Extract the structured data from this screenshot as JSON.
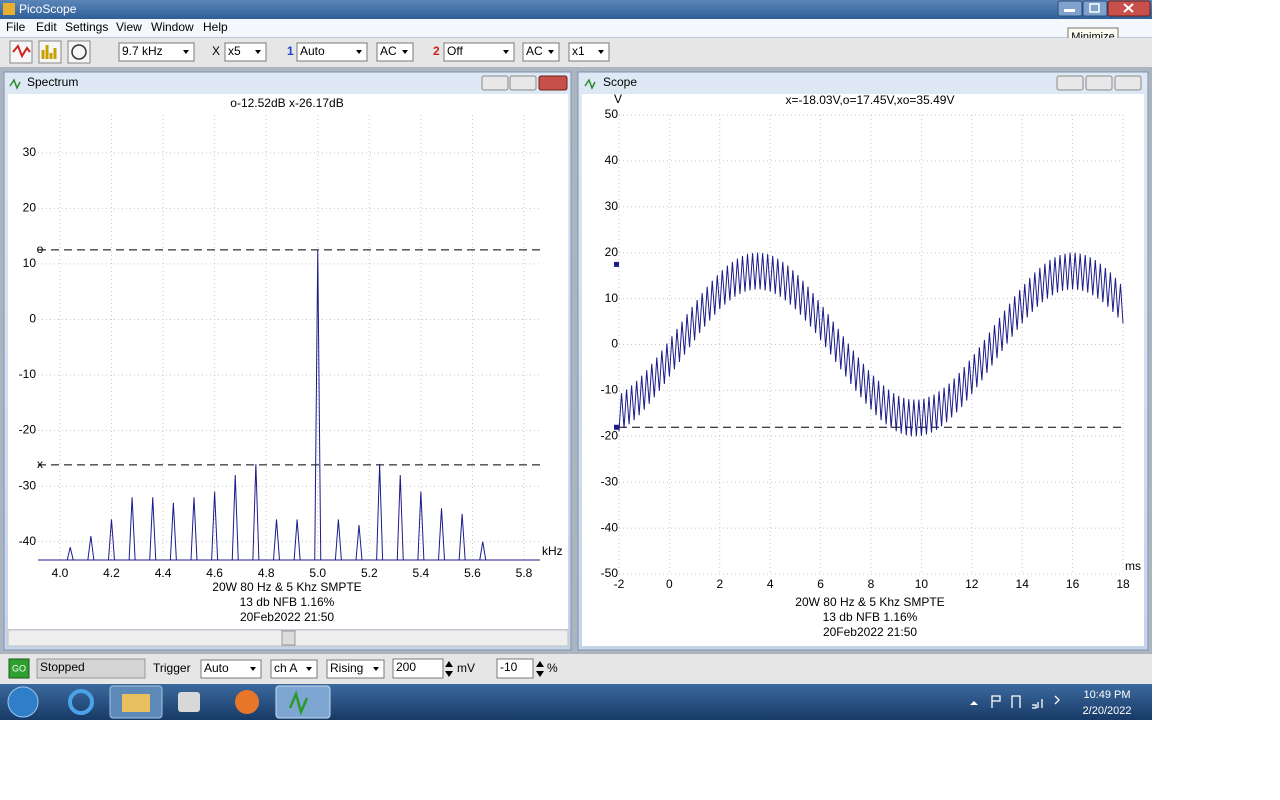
{
  "window": {
    "title": "PicoScope"
  },
  "tooltip": "Minimize",
  "menu": [
    "File",
    "Edit",
    "Settings",
    "View",
    "Window",
    "Help"
  ],
  "toolbar": {
    "timebase": "9.7 kHz",
    "x_label": "X",
    "zoom": "x5",
    "channel_1": "1",
    "ch1_range": "Auto",
    "ch1_coupling": "AC",
    "channel_2": "2",
    "ch2_range": "Off",
    "ch2_coupling": "AC",
    "ch2_multiplier": "x1"
  },
  "spectrum": {
    "title": "Spectrum",
    "readout": "o-12.52dB  x-26.17dB",
    "x_unit": "kHz",
    "color": "#1c1c8a",
    "grid": true,
    "xlim": [
      3.915,
      5.862
    ],
    "xticks": [
      {
        "value": 4,
        "label": "4.0"
      },
      4.2,
      4.4,
      4.6,
      4.8,
      {
        "value": 5,
        "label": "5.0"
      },
      5.2,
      5.4,
      5.6,
      5.8
    ],
    "ylim": [
      -43.3,
      36.8
    ],
    "yticks": [
      -40,
      -30,
      -20,
      -10,
      0,
      10,
      20,
      30
    ],
    "markers": [
      {
        "label": "o",
        "value": 12.52
      },
      {
        "label": "x",
        "value": -26.17
      }
    ],
    "peaks": {
      "x": [
        4.04,
        4.12,
        4.2,
        4.28,
        4.36,
        4.44,
        4.52,
        4.6,
        4.68,
        4.76,
        4.84,
        4.92,
        5.0,
        5.08,
        5.16,
        5.24,
        5.32,
        5.4,
        5.48,
        5.56,
        5.64
      ],
      "values": [
        -41,
        -39,
        -36,
        -32,
        -32,
        -33,
        -32,
        -31,
        -28,
        -26,
        -36,
        -36,
        12.52,
        -36,
        -37,
        -26,
        -28,
        -31,
        -34,
        -35,
        -40
      ]
    },
    "caption": [
      "20W 80 Hz & 5 Khz SMPTE",
      "13 db NFB 1.16%",
      "20Feb2022  21:50"
    ]
  },
  "scope": {
    "title": "Scope",
    "readout": "x=-18.03V,o=17.45V,xo=35.49V",
    "y_unit": "V",
    "x_unit": "ms",
    "color": "#1c1c8a",
    "grid": true,
    "xlim": [
      -2,
      18
    ],
    "xticks": [
      -2,
      0,
      2,
      4,
      6,
      8,
      10,
      12,
      14,
      16,
      18
    ],
    "ylim": [
      -50,
      50
    ],
    "yticks": [
      -50,
      -40,
      -30,
      -20,
      -10,
      0,
      10,
      20,
      30,
      40,
      50
    ],
    "markers": [
      {
        "value": 17.45,
        "line": false
      },
      {
        "value": -18.03,
        "line": true
      }
    ],
    "trace": {
      "x": [
        -2,
        -1.9,
        -1.8,
        -1.7,
        -1.6,
        -1.5,
        -1.4,
        -1.3,
        -1.2,
        -1.1,
        -1,
        -0.9,
        -0.8,
        -0.7,
        -0.6,
        -0.5,
        -0.4,
        -0.3,
        -0.2,
        -0.1,
        0,
        0.1,
        0.2,
        0.3,
        0.4,
        0.5,
        0.6,
        0.7,
        0.8,
        0.9,
        1,
        1.1,
        1.2,
        1.3,
        1.4,
        1.5,
        1.6,
        1.7,
        1.8,
        1.9,
        2,
        2.1,
        2.2,
        2.3,
        2.4,
        2.5,
        2.6,
        2.7,
        2.8,
        2.9,
        3,
        3.1,
        3.2,
        3.3,
        3.4,
        3.5,
        3.6,
        3.7,
        3.8,
        3.9,
        4,
        4.1,
        4.2,
        4.3,
        4.4,
        4.5,
        4.6,
        4.7,
        4.8,
        4.9,
        5,
        5.1,
        5.2,
        5.3,
        5.4,
        5.5,
        5.6,
        5.7,
        5.8,
        5.9,
        6,
        6.1,
        6.2,
        6.3,
        6.4,
        6.5,
        6.6,
        6.7,
        6.8,
        6.9,
        7,
        7.1,
        7.2,
        7.3,
        7.4,
        7.5,
        7.6,
        7.7,
        7.8,
        7.9,
        8,
        8.1,
        8.2,
        8.3,
        8.4,
        8.5,
        8.6,
        8.7,
        8.8,
        8.9,
        9,
        9.1,
        9.2,
        9.3,
        9.4,
        9.5,
        9.6,
        9.7,
        9.8,
        9.9,
        10,
        10.1,
        10.2,
        10.3,
        10.4,
        10.5,
        10.6,
        10.7,
        10.8,
        10.9,
        11,
        11.1,
        11.2,
        11.3,
        11.4,
        11.5,
        11.6,
        11.7,
        11.8,
        11.9,
        12,
        12.1,
        12.2,
        12.3,
        12.4,
        12.5,
        12.6,
        12.7,
        12.8,
        12.9,
        13,
        13.1,
        13.2,
        13.3,
        13.4,
        13.5,
        13.6,
        13.7,
        13.8,
        13.9,
        14,
        14.1,
        14.2,
        14.3,
        14.4,
        14.5,
        14.6,
        14.7,
        14.8,
        14.9,
        15,
        15.1,
        15.2,
        15.3,
        15.4,
        15.5,
        15.6,
        15.7,
        15.8,
        15.9,
        16,
        16.1,
        16.2,
        16.3,
        16.4,
        16.5,
        16.6,
        16.7,
        16.8,
        16.9,
        17,
        17.1,
        17.2,
        17.3,
        17.4,
        17.5,
        17.6,
        17.7,
        17.8,
        17.9,
        18
      ],
      "values": [
        -18.9,
        -10.6,
        -18.2,
        -9.8,
        -17.4,
        -8.9,
        -16.5,
        -7.9,
        -15.4,
        -6.8,
        -14.2,
        -5.6,
        -12.9,
        -4.2,
        -11.5,
        -2.8,
        -10.1,
        -1.3,
        -8.6,
        0.2,
        -7.0,
        1.8,
        -5.4,
        3.4,
        -3.8,
        5.0,
        -2.2,
        6.6,
        -0.6,
        8.2,
        0.9,
        9.7,
        2.5,
        11.2,
        3.9,
        12.6,
        5.2,
        13.9,
        6.5,
        15.1,
        7.7,
        16.2,
        8.7,
        17.2,
        9.6,
        18.0,
        10.4,
        18.7,
        11.0,
        19.3,
        11.5,
        19.7,
        11.8,
        19.9,
        12.0,
        20.0,
        12.0,
        19.9,
        11.8,
        19.7,
        11.5,
        19.3,
        11.0,
        18.7,
        10.4,
        18.0,
        9.6,
        17.2,
        8.7,
        16.2,
        7.7,
        15.1,
        6.5,
        13.9,
        5.2,
        12.6,
        3.9,
        11.2,
        2.5,
        9.7,
        0.9,
        8.2,
        -0.6,
        6.6,
        -2.2,
        5.0,
        -3.8,
        3.4,
        -5.4,
        1.8,
        -7.0,
        0.2,
        -8.6,
        -1.3,
        -10.1,
        -2.8,
        -11.5,
        -4.2,
        -12.9,
        -5.6,
        -14.2,
        -6.8,
        -15.4,
        -7.9,
        -16.5,
        -8.9,
        -17.4,
        -9.8,
        -18.2,
        -10.6,
        -18.9,
        -11.2,
        -19.4,
        -11.6,
        -19.8,
        -11.9,
        -20.0,
        -12.0,
        -20.0,
        -12.0,
        -19.9,
        -11.8,
        -19.6,
        -11.4,
        -19.2,
        -10.9,
        -18.6,
        -10.2,
        -17.8,
        -9.4,
        -16.9,
        -8.5,
        -15.9,
        -7.4,
        -14.8,
        -6.2,
        -13.6,
        -4.9,
        -12.2,
        -3.5,
        -10.8,
        -2.1,
        -9.3,
        -0.6,
        -7.8,
        1.0,
        -6.2,
        2.6,
        -4.6,
        4.2,
        -3.0,
        5.8,
        -1.4,
        7.4,
        0.2,
        8.9,
        1.7,
        10.5,
        3.2,
        11.9,
        4.6,
        13.2,
        5.9,
        14.5,
        7.1,
        15.7,
        8.2,
        16.7,
        9.2,
        17.6,
        10.0,
        18.4,
        10.7,
        19.0,
        11.3,
        19.5,
        11.7,
        19.8,
        11.9,
        20.0,
        12.0,
        20.0,
        11.9,
        19.8,
        11.7,
        19.5,
        11.3,
        19.0,
        10.7,
        18.4,
        10.0,
        17.6,
        9.2,
        16.7,
        8.2,
        15.7,
        7.1,
        14.5,
        5.9,
        13.2,
        4.6
      ]
    },
    "caption": [
      "20W 80 Hz & 5 Khz SMPTE",
      "13 db NFB 1.16%",
      "20Feb2022  21:50"
    ]
  },
  "status": {
    "go": "GO",
    "state": "Stopped",
    "trigger_label": "Trigger",
    "trigger_mode": "Auto",
    "trigger_channel": "ch A",
    "trigger_edge": "Rising",
    "trigger_level": "200",
    "level_unit": "mV",
    "pretrigger": "-10",
    "pretrigger_unit": "%"
  },
  "taskbar": {
    "time": "10:49 PM",
    "date": "2/20/2022"
  }
}
